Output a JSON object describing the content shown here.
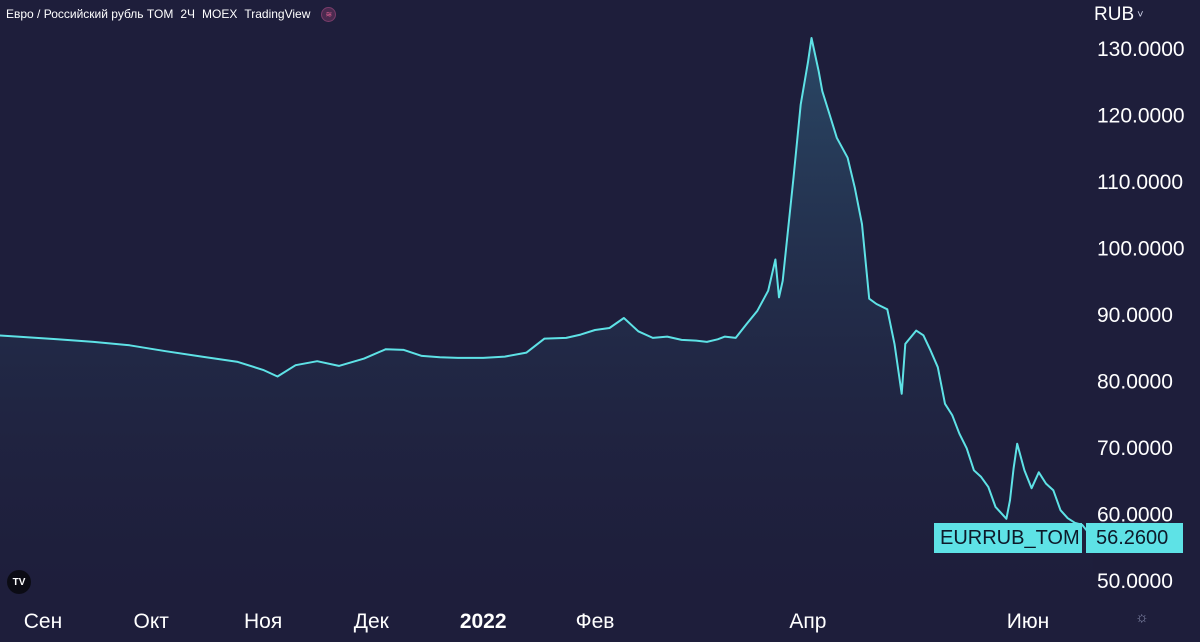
{
  "header": {
    "symbol_title": "Евро / Российский рубль TOM",
    "interval": "2Ч",
    "exchange": "MOEX",
    "source": "TradingView"
  },
  "currency": {
    "label": "RUB",
    "chevron": "chevron-down-icon"
  },
  "icons": {
    "logo": "tradingview-logo-icon",
    "logo_text": "TV",
    "settings": "gear-icon"
  },
  "price_tag": {
    "name": "EURRUB_TOM",
    "value": "56.2600",
    "color": "#5ee2e6"
  },
  "colors": {
    "background": "#1e1e3b",
    "line": "#5ee2e6",
    "area_top": "#2b4a68"
  },
  "chart_data": {
    "type": "area",
    "title": "Евро / Российский рубль TOM",
    "xlabel": "",
    "ylabel": "",
    "ylim": [
      46,
      133
    ],
    "grid": false,
    "y_ticks": [
      50,
      60,
      70,
      80,
      90,
      100,
      110,
      120,
      130
    ],
    "y_tick_labels": [
      "50.0000",
      "60.0000",
      "70.0000",
      "80.0000",
      "90.0000",
      "100.0000",
      "110.0000",
      "120.0000",
      "130.0000"
    ],
    "x_ticks": [
      {
        "label": "Сен",
        "x": "2021-09-01",
        "bold": false
      },
      {
        "label": "Окт",
        "x": "2021-10-01",
        "bold": false
      },
      {
        "label": "Ноя",
        "x": "2021-11-01",
        "bold": false
      },
      {
        "label": "Дек",
        "x": "2021-12-01",
        "bold": false
      },
      {
        "label": "2022",
        "x": "2022-01-01",
        "bold": true
      },
      {
        "label": "Фев",
        "x": "2022-02-01",
        "bold": false
      },
      {
        "label": "Апр",
        "x": "2022-04-01",
        "bold": false
      },
      {
        "label": "Июн",
        "x": "2022-06-01",
        "bold": false
      }
    ],
    "series": [
      {
        "points": [
          [
            "2021-08-16",
            86.9
          ],
          [
            "2021-08-25",
            86.6
          ],
          [
            "2021-09-05",
            86.2
          ],
          [
            "2021-09-15",
            85.8
          ],
          [
            "2021-09-25",
            85.3
          ],
          [
            "2021-10-05",
            84.4
          ],
          [
            "2021-10-15",
            83.6
          ],
          [
            "2021-10-25",
            82.8
          ],
          [
            "2021-11-01",
            81.6
          ],
          [
            "2021-11-05",
            80.6
          ],
          [
            "2021-11-10",
            82.3
          ],
          [
            "2021-11-16",
            82.9
          ],
          [
            "2021-11-22",
            82.2
          ],
          [
            "2021-11-29",
            83.3
          ],
          [
            "2021-12-05",
            84.7
          ],
          [
            "2021-12-10",
            84.6
          ],
          [
            "2021-12-15",
            83.7
          ],
          [
            "2021-12-20",
            83.5
          ],
          [
            "2021-12-25",
            83.4
          ],
          [
            "2022-01-01",
            83.4
          ],
          [
            "2022-01-07",
            83.6
          ],
          [
            "2022-01-13",
            84.2
          ],
          [
            "2022-01-18",
            86.3
          ],
          [
            "2022-01-24",
            86.4
          ],
          [
            "2022-01-28",
            86.9
          ],
          [
            "2022-02-01",
            87.6
          ],
          [
            "2022-02-05",
            87.9
          ],
          [
            "2022-02-09",
            89.4
          ],
          [
            "2022-02-13",
            87.4
          ],
          [
            "2022-02-17",
            86.4
          ],
          [
            "2022-02-21",
            86.6
          ],
          [
            "2022-02-25",
            86.1
          ],
          [
            "2022-03-01",
            86.0
          ],
          [
            "2022-03-04",
            85.8
          ],
          [
            "2022-03-07",
            86.2
          ],
          [
            "2022-03-09",
            86.6
          ],
          [
            "2022-03-12",
            86.4
          ],
          [
            "2022-03-15",
            88.5
          ],
          [
            "2022-03-18",
            90.5
          ],
          [
            "2022-03-21",
            93.5
          ],
          [
            "2022-03-23",
            98.2
          ],
          [
            "2022-03-24",
            92.5
          ],
          [
            "2022-03-25",
            95.0
          ],
          [
            "2022-03-28",
            110.5
          ],
          [
            "2022-03-30",
            121.5
          ],
          [
            "2022-04-01",
            127.8
          ],
          [
            "2022-04-02",
            131.5
          ],
          [
            "2022-04-04",
            126.5
          ],
          [
            "2022-04-05",
            123.5
          ],
          [
            "2022-04-07",
            120.0
          ],
          [
            "2022-04-09",
            116.5
          ],
          [
            "2022-04-12",
            113.5
          ],
          [
            "2022-04-14",
            109.0
          ],
          [
            "2022-04-16",
            103.5
          ],
          [
            "2022-04-18",
            92.3
          ],
          [
            "2022-04-20",
            91.5
          ],
          [
            "2022-04-23",
            90.7
          ],
          [
            "2022-04-25",
            85.5
          ],
          [
            "2022-04-27",
            78.0
          ],
          [
            "2022-04-28",
            85.5
          ],
          [
            "2022-05-01",
            87.5
          ],
          [
            "2022-05-03",
            86.8
          ],
          [
            "2022-05-05",
            84.5
          ],
          [
            "2022-05-07",
            82.0
          ],
          [
            "2022-05-09",
            76.5
          ],
          [
            "2022-05-11",
            74.8
          ],
          [
            "2022-05-13",
            72.0
          ],
          [
            "2022-05-15",
            69.8
          ],
          [
            "2022-05-17",
            66.5
          ],
          [
            "2022-05-19",
            65.5
          ],
          [
            "2022-05-21",
            64.0
          ],
          [
            "2022-05-23",
            61.0
          ],
          [
            "2022-05-26",
            59.2
          ],
          [
            "2022-05-27",
            62.0
          ],
          [
            "2022-05-28",
            66.8
          ],
          [
            "2022-05-29",
            70.5
          ],
          [
            "2022-05-31",
            66.5
          ],
          [
            "2022-06-02",
            63.8
          ],
          [
            "2022-06-04",
            66.2
          ],
          [
            "2022-06-06",
            64.5
          ],
          [
            "2022-06-08",
            63.5
          ],
          [
            "2022-06-10",
            60.5
          ],
          [
            "2022-06-12",
            59.3
          ],
          [
            "2022-06-14",
            58.6
          ],
          [
            "2022-06-16",
            58.3
          ],
          [
            "2022-06-19",
            56.3
          ]
        ]
      }
    ]
  }
}
